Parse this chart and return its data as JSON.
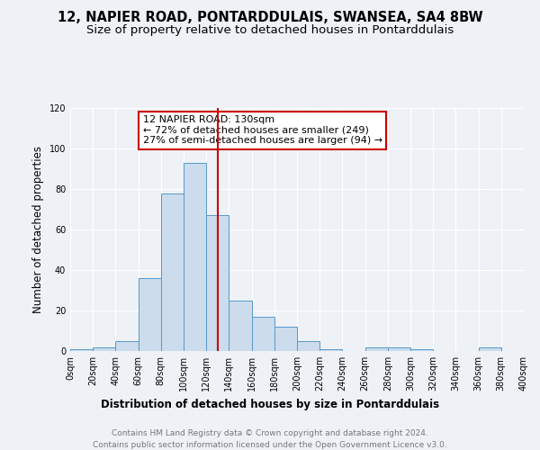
{
  "title": "12, NAPIER ROAD, PONTARDDULAIS, SWANSEA, SA4 8BW",
  "subtitle": "Size of property relative to detached houses in Pontarddulais",
  "xlabel": "Distribution of detached houses by size in Pontarddulais",
  "ylabel": "Number of detached properties",
  "bin_edges": [
    0,
    20,
    40,
    60,
    80,
    100,
    120,
    140,
    160,
    180,
    200,
    220,
    240,
    260,
    280,
    300,
    320,
    340,
    360,
    380,
    400
  ],
  "bar_heights": [
    1,
    2,
    5,
    36,
    78,
    93,
    67,
    25,
    17,
    12,
    5,
    1,
    0,
    2,
    2,
    1,
    0,
    0,
    2,
    0
  ],
  "bar_color": "#ccdcec",
  "bar_edge_color": "#5599cc",
  "vline_x": 130,
  "vline_color": "#cc0000",
  "annotation_text": "12 NAPIER ROAD: 130sqm\n← 72% of detached houses are smaller (249)\n27% of semi-detached houses are larger (94) →",
  "annotation_box_edge_color": "#cc0000",
  "annotation_box_face_color": "#ffffff",
  "ylim": [
    0,
    120
  ],
  "yticks": [
    0,
    20,
    40,
    60,
    80,
    100,
    120
  ],
  "xtick_labels": [
    "0sqm",
    "20sqm",
    "40sqm",
    "60sqm",
    "80sqm",
    "100sqm",
    "120sqm",
    "140sqm",
    "160sqm",
    "180sqm",
    "200sqm",
    "220sqm",
    "240sqm",
    "260sqm",
    "280sqm",
    "300sqm",
    "320sqm",
    "340sqm",
    "360sqm",
    "380sqm",
    "400sqm"
  ],
  "footer1": "Contains HM Land Registry data © Crown copyright and database right 2024.",
  "footer2": "Contains public sector information licensed under the Open Government Licence v3.0.",
  "bg_color": "#eef2f7",
  "title_fontsize": 10.5,
  "subtitle_fontsize": 9.5,
  "axis_label_fontsize": 8.5,
  "tick_fontsize": 7,
  "annotation_fontsize": 8,
  "footer_fontsize": 6.5
}
